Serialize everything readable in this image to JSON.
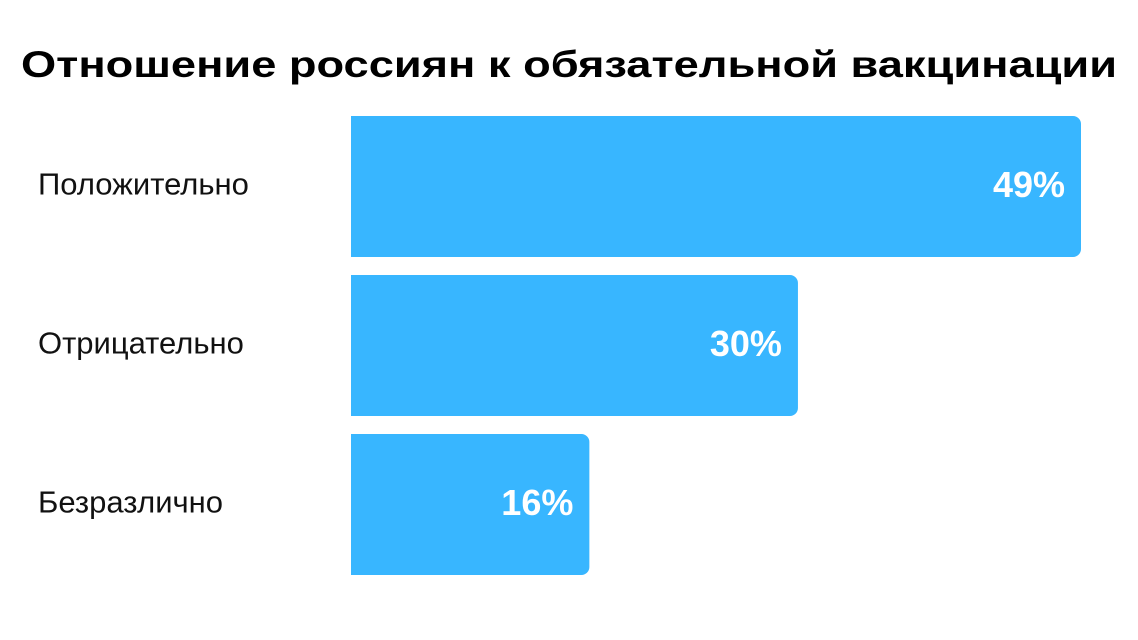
{
  "chart_data": {
    "type": "bar",
    "orientation": "horizontal",
    "title": "Отношение россиян к обязательной вакцинации",
    "categories": [
      "Положительно",
      "Отрицательно",
      "Безразлично"
    ],
    "values": [
      49,
      30,
      16
    ],
    "value_labels": [
      "49%",
      "30%",
      "16%"
    ],
    "color": "#38b6ff"
  }
}
